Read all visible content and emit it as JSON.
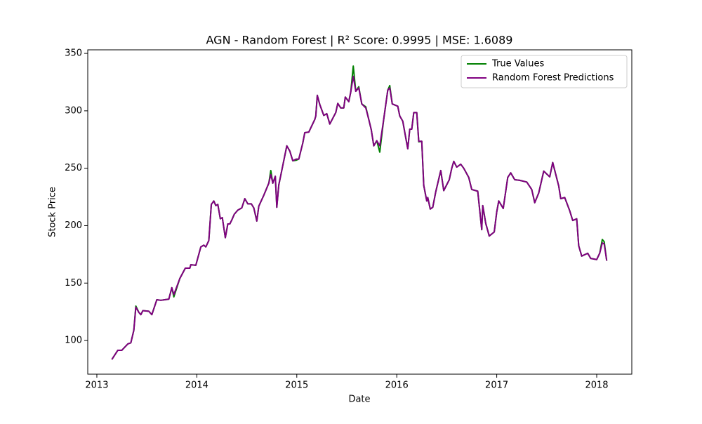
{
  "chart_data": {
    "type": "line",
    "title": "AGN - Random Forest | R² Score: 0.9995 | MSE: 1.6089",
    "xlabel": "Date",
    "ylabel": "Stock Price",
    "x": [
      2013.15,
      2013.21,
      2013.25,
      2013.31,
      2013.34,
      2013.37,
      2013.39,
      2013.42,
      2013.44,
      2013.46,
      2013.52,
      2013.55,
      2013.6,
      2013.64,
      2013.72,
      2013.75,
      2013.77,
      2013.83,
      2013.885,
      2013.93,
      2013.94,
      2013.99,
      2014.04,
      2014.07,
      2014.09,
      2014.12,
      2014.145,
      2014.17,
      2014.19,
      2014.21,
      2014.235,
      2014.255,
      2014.285,
      2014.31,
      2014.33,
      2014.35,
      2014.375,
      2014.41,
      2014.45,
      2014.48,
      2014.51,
      2014.545,
      2014.57,
      2014.6,
      2014.62,
      2014.67,
      2014.72,
      2014.74,
      2014.76,
      2014.785,
      2014.8,
      2014.82,
      2014.845,
      2014.9,
      2014.93,
      2014.96,
      2014.995,
      2015.02,
      2015.06,
      2015.08,
      2015.12,
      2015.18,
      2015.19,
      2015.205,
      2015.23,
      2015.27,
      2015.3,
      2015.33,
      2015.39,
      2015.41,
      2015.44,
      2015.47,
      2015.485,
      2015.52,
      2015.54,
      2015.565,
      2015.59,
      2015.62,
      2015.65,
      2015.69,
      2015.72,
      2015.745,
      2015.77,
      2015.8,
      2015.83,
      2015.87,
      2015.91,
      2015.93,
      2015.955,
      2016.01,
      2016.03,
      2016.06,
      2016.09,
      2016.11,
      2016.13,
      2016.15,
      2016.17,
      2016.2,
      2016.22,
      2016.25,
      2016.27,
      2016.3,
      2016.31,
      2016.335,
      2016.36,
      2016.39,
      2016.44,
      2016.47,
      2016.525,
      2016.55,
      2016.57,
      2016.6,
      2016.64,
      2016.67,
      2016.72,
      2016.75,
      2016.81,
      2016.85,
      2016.86,
      2016.89,
      2016.925,
      2016.975,
      2017.0,
      2017.02,
      2017.065,
      2017.11,
      2017.14,
      2017.18,
      2017.23,
      2017.3,
      2017.35,
      2017.38,
      2017.42,
      2017.47,
      2017.53,
      2017.56,
      2017.62,
      2017.64,
      2017.68,
      2017.73,
      2017.76,
      2017.8,
      2017.82,
      2017.85,
      2017.91,
      2017.94,
      2018.0,
      2018.03,
      2018.056,
      2018.075,
      2018.1
    ],
    "series": [
      {
        "name": "True Values",
        "color": "#008000",
        "values": [
          83.5,
          91.5,
          91.5,
          97,
          98,
          109,
          130,
          124.5,
          122.5,
          126,
          125.5,
          122.5,
          135.5,
          135,
          136,
          146,
          138,
          154,
          163,
          163,
          166,
          165.5,
          181.5,
          183,
          181.5,
          187,
          218.5,
          221.5,
          217.5,
          218.5,
          206,
          207,
          189.5,
          201.5,
          201.5,
          205,
          210,
          213.5,
          215.5,
          223.5,
          219,
          219,
          215.5,
          204,
          217,
          226.5,
          237,
          248,
          237,
          243,
          216,
          235.5,
          246,
          269.5,
          265,
          256.5,
          257,
          258,
          272,
          281,
          281.5,
          292.5,
          295.5,
          313.5,
          305.5,
          296,
          297.5,
          288.5,
          298.5,
          306.5,
          302.5,
          302.5,
          312,
          308,
          316.5,
          339,
          317,
          321,
          306,
          303.5,
          292.5,
          283.5,
          269.5,
          274,
          264,
          293,
          318,
          322,
          306,
          304,
          295.5,
          291,
          276.5,
          267,
          284,
          284,
          298.5,
          298.5,
          273,
          273.5,
          235,
          221.5,
          224.5,
          214.5,
          216,
          229.5,
          248,
          230.5,
          240,
          250,
          256,
          251,
          253.5,
          250,
          242,
          231.5,
          230,
          196.5,
          217.5,
          202,
          191,
          194.5,
          212,
          221.5,
          215,
          242,
          246,
          240,
          239.5,
          238,
          231.5,
          220,
          228.5,
          247.5,
          242.5,
          255,
          234.5,
          223.5,
          224.5,
          213,
          204.5,
          206,
          182.5,
          173.5,
          176,
          171.5,
          170.5,
          176,
          188,
          186,
          169.5
        ]
      },
      {
        "name": "Random Forest Predictions",
        "color": "#800080",
        "values": [
          83.5,
          91.5,
          91.5,
          97,
          98,
          109,
          129,
          124.5,
          122.5,
          126,
          125.5,
          122.5,
          135.5,
          135,
          136,
          146,
          140,
          154,
          163,
          163,
          166,
          165.5,
          181.5,
          183,
          181.5,
          187,
          218.5,
          221.5,
          217.5,
          218.5,
          206,
          207,
          189.5,
          201.5,
          201.5,
          205,
          210,
          213.5,
          215.5,
          223.5,
          219,
          219,
          215.5,
          204,
          217,
          226.5,
          237,
          244.5,
          237,
          243,
          216,
          235.5,
          246,
          269.5,
          265,
          256.5,
          258,
          258,
          272,
          281,
          281.5,
          292.5,
          295.5,
          313.5,
          305.5,
          296,
          297.5,
          288.5,
          298.5,
          306.5,
          302.5,
          302.5,
          312,
          308,
          316.5,
          330,
          317,
          320,
          306,
          302.5,
          292.5,
          283.5,
          269.5,
          274,
          269.5,
          293,
          318,
          320,
          306,
          304,
          295.5,
          291,
          276.5,
          267,
          284,
          284,
          298.5,
          298.5,
          273.5,
          273.5,
          235,
          221.5,
          224.5,
          214.5,
          216,
          229.5,
          248,
          230.5,
          240,
          250,
          256,
          251,
          253.5,
          250,
          242,
          231.5,
          230,
          196.5,
          217.5,
          202,
          191,
          194.5,
          212,
          221.5,
          215,
          242,
          246,
          240,
          239.5,
          238,
          231.5,
          220,
          228.5,
          247.5,
          242.5,
          255,
          234.5,
          223.5,
          224.5,
          213,
          204.5,
          206,
          182.5,
          173.5,
          176,
          171.5,
          170.5,
          176,
          185,
          184,
          169.5
        ]
      }
    ],
    "xlim": [
      2012.909,
      2018.351
    ],
    "xticks": [
      2013,
      2014,
      2015,
      2016,
      2017,
      2018
    ],
    "ylim": [
      70.7,
      353.1
    ],
    "yticks": [
      100,
      150,
      200,
      250,
      300,
      350
    ],
    "legend": "upper right"
  }
}
